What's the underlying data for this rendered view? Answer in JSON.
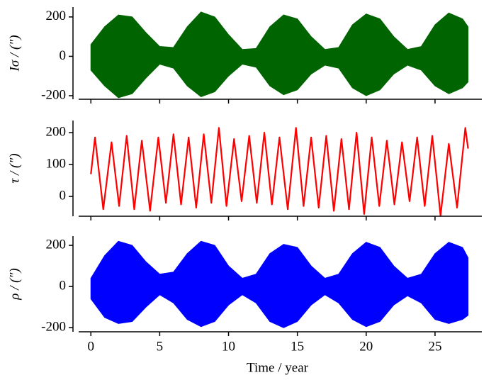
{
  "chart_data": [
    {
      "type": "range",
      "ylabel": "Iσ / (″)",
      "color": "#006400",
      "x": [
        0,
        1,
        2,
        3,
        4,
        5,
        6,
        7,
        8,
        9,
        10,
        11,
        12,
        13,
        14,
        15,
        16,
        17,
        18,
        19,
        20,
        21,
        22,
        23,
        24,
        25,
        26,
        27,
        27.4
      ],
      "values": [
        60,
        150,
        210,
        200,
        120,
        50,
        45,
        150,
        225,
        200,
        110,
        35,
        40,
        150,
        210,
        190,
        100,
        35,
        45,
        160,
        215,
        190,
        100,
        35,
        50,
        160,
        220,
        190,
        150
      ],
      "lower": [
        -70,
        -150,
        -210,
        -190,
        -110,
        -40,
        -60,
        -150,
        -205,
        -180,
        -100,
        -40,
        -55,
        -150,
        -195,
        -170,
        -90,
        -45,
        -60,
        -160,
        -200,
        -170,
        -90,
        -45,
        -70,
        -150,
        -190,
        -160,
        -130
      ],
      "xlim": [
        -1.3,
        28.4
      ],
      "xticks": [
        0,
        5,
        10,
        15,
        20,
        25
      ],
      "ylim": [
        -218,
        250
      ],
      "yticks": [
        -200,
        0,
        200
      ]
    },
    {
      "type": "line",
      "ylabel": "τ / (″)",
      "color": "#ff0000",
      "x": [
        0,
        0.3,
        0.9,
        1.5,
        2.05,
        2.6,
        3.15,
        3.7,
        4.3,
        4.9,
        5.45,
        6.0,
        6.55,
        7.1,
        7.65,
        8.2,
        8.75,
        9.3,
        9.85,
        10.4,
        10.95,
        11.5,
        12.05,
        12.6,
        13.15,
        13.7,
        14.3,
        14.9,
        15.45,
        16.0,
        16.55,
        17.1,
        17.65,
        18.2,
        18.75,
        19.3,
        19.85,
        20.4,
        20.95,
        21.5,
        22.05,
        22.6,
        23.15,
        23.7,
        24.25,
        24.8,
        25.4,
        26.0,
        26.6,
        27.2,
        27.4
      ],
      "values": [
        70,
        185,
        -40,
        170,
        -30,
        190,
        -40,
        175,
        -45,
        185,
        -20,
        195,
        -25,
        185,
        -35,
        195,
        -20,
        215,
        -30,
        180,
        -15,
        190,
        -20,
        200,
        -25,
        185,
        -40,
        215,
        -30,
        185,
        -35,
        190,
        -45,
        180,
        -40,
        200,
        -55,
        185,
        -30,
        175,
        -25,
        170,
        -15,
        185,
        -30,
        190,
        -60,
        165,
        -35,
        215,
        150
      ],
      "xlim": [
        -1.3,
        28.4
      ],
      "xticks": [
        0,
        5,
        10,
        15,
        20,
        25
      ],
      "ylim": [
        -62,
        238
      ],
      "yticks": [
        0,
        100,
        200
      ]
    },
    {
      "type": "range",
      "ylabel": "ρ / (″)",
      "xlabel": "Time / year",
      "color": "#0000ff",
      "x": [
        0,
        1,
        2,
        3,
        4,
        5,
        6,
        7,
        8,
        9,
        10,
        11,
        12,
        13,
        14,
        15,
        16,
        17,
        18,
        19,
        20,
        21,
        22,
        23,
        24,
        25,
        26,
        27,
        27.4
      ],
      "values": [
        40,
        150,
        220,
        200,
        120,
        60,
        70,
        160,
        220,
        200,
        100,
        40,
        60,
        160,
        205,
        190,
        100,
        40,
        60,
        160,
        215,
        190,
        100,
        40,
        60,
        160,
        215,
        190,
        140
      ],
      "lower": [
        -60,
        -150,
        -180,
        -170,
        -100,
        -40,
        -80,
        -160,
        -195,
        -170,
        -90,
        -40,
        -80,
        -170,
        -200,
        -170,
        -90,
        -40,
        -80,
        -160,
        -195,
        -170,
        -90,
        -45,
        -80,
        -160,
        -180,
        -160,
        -140
      ],
      "xlim": [
        -1.3,
        28.4
      ],
      "xticks": [
        0,
        5,
        10,
        15,
        20,
        25
      ],
      "ylim": [
        -220,
        245
      ],
      "yticks": [
        -200,
        0,
        200
      ]
    }
  ]
}
